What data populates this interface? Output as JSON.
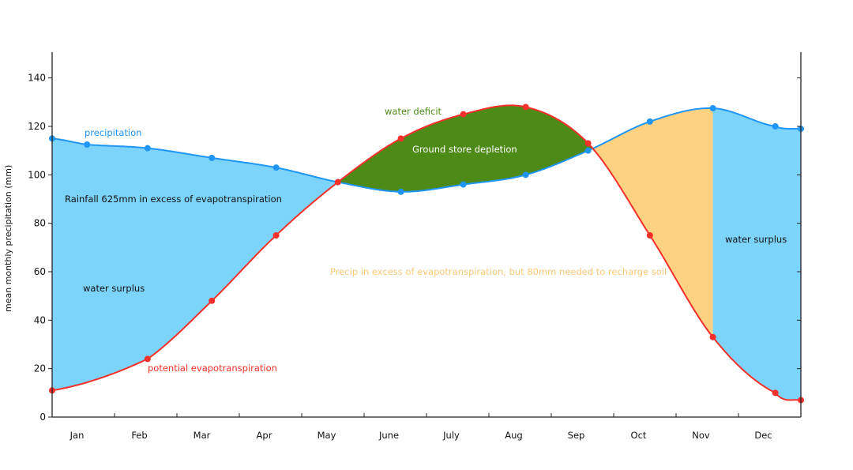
{
  "chart_data": {
    "type": "area",
    "ylabel": "mean monthly precipitation (mm)",
    "xlabel": "",
    "ylim": [
      0,
      150
    ],
    "yticks": [
      0,
      20,
      40,
      60,
      80,
      100,
      120,
      140
    ],
    "categories": [
      "Jan",
      "Feb",
      "Mar",
      "Apr",
      "May",
      "June",
      "July",
      "Aug",
      "Sep",
      "Oct",
      "Nov",
      "Dec"
    ],
    "grid": false,
    "series": [
      {
        "name": "precipitation",
        "color": "#1f95f5",
        "x": [
          0,
          0.56,
          1.53,
          2.56,
          3.59,
          4.58,
          5.59,
          6.59,
          7.59,
          8.59,
          9.58,
          10.59,
          11.59,
          12
        ],
        "y": [
          115,
          112.5,
          111,
          107,
          103,
          97,
          93,
          96,
          100,
          110,
          122,
          127.5,
          120,
          119
        ]
      },
      {
        "name": "potential evapotranspiration",
        "color": "#f5302a",
        "x": [
          0,
          1.53,
          2.56,
          3.59,
          4.58,
          5.59,
          6.59,
          7.59,
          8.59,
          9.58,
          10.59,
          11.59,
          12
        ],
        "y": [
          11,
          24,
          48,
          75,
          97,
          115,
          125,
          128,
          113,
          75,
          33,
          10,
          7
        ]
      }
    ],
    "fills": {
      "surplus": "#7dd4fb",
      "deficit": "#4e8a17",
      "recharge": "#fdd283"
    },
    "annotations": {
      "rainfall": "Rainfall 625mm in excess of evapotranspiration",
      "surplus_left": "water surplus",
      "surplus_right": "water surplus",
      "deficit": "water deficit",
      "depletion": "Ground store depletion",
      "recharge": "Precip in excess of evapotranspiration, but 80mm needed to recharge soil"
    }
  }
}
